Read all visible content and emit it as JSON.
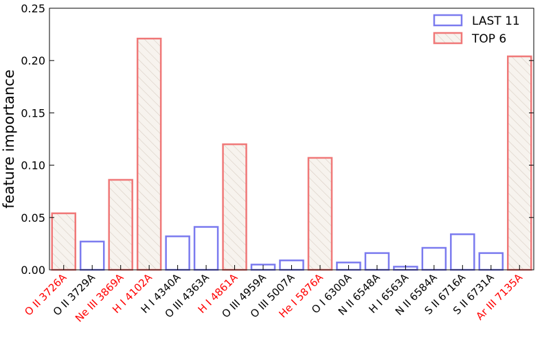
{
  "chart_data": {
    "type": "bar",
    "title": "",
    "xlabel": "",
    "ylabel": "feature importance",
    "ylim": [
      0,
      0.25
    ],
    "yticks": [
      "0.00",
      "0.05",
      "0.10",
      "0.15",
      "0.20",
      "0.25"
    ],
    "grid": false,
    "legend_position": "top-right",
    "series": [
      {
        "name": "LAST 11",
        "color": "#7b7bef",
        "fill": "none"
      },
      {
        "name": "TOP 6",
        "color": "#f07878",
        "fill": "hatched"
      }
    ],
    "categories": [
      {
        "label": "O II  3726A",
        "value": 0.054,
        "series": "TOP 6",
        "label_color": "#ff0000"
      },
      {
        "label": "O II  3729A",
        "value": 0.027,
        "series": "LAST 11",
        "label_color": "#000000"
      },
      {
        "label": "Ne III  3869A",
        "value": 0.086,
        "series": "TOP 6",
        "label_color": "#ff0000"
      },
      {
        "label": "H  I  4102A",
        "value": 0.221,
        "series": "TOP 6",
        "label_color": "#ff0000"
      },
      {
        "label": "H  I  4340A",
        "value": 0.032,
        "series": "LAST 11",
        "label_color": "#000000"
      },
      {
        "label": "O  III  4363A",
        "value": 0.041,
        "series": "LAST 11",
        "label_color": "#000000"
      },
      {
        "label": "H  I  4861A",
        "value": 0.12,
        "series": "TOP 6",
        "label_color": "#ff0000"
      },
      {
        "label": "O  III  4959A",
        "value": 0.005,
        "series": "LAST 11",
        "label_color": "#000000"
      },
      {
        "label": "O  III  5007A",
        "value": 0.009,
        "series": "LAST 11",
        "label_color": "#000000"
      },
      {
        "label": "He I  5876A",
        "value": 0.107,
        "series": "TOP 6",
        "label_color": "#ff0000"
      },
      {
        "label": "O  I  6300A",
        "value": 0.007,
        "series": "LAST 11",
        "label_color": "#000000"
      },
      {
        "label": "N  II  6548A",
        "value": 0.016,
        "series": "LAST 11",
        "label_color": "#000000"
      },
      {
        "label": "H  I  6563A",
        "value": 0.003,
        "series": "LAST 11",
        "label_color": "#000000"
      },
      {
        "label": "N  II  6584A",
        "value": 0.021,
        "series": "LAST 11",
        "label_color": "#000000"
      },
      {
        "label": "S II  6716A",
        "value": 0.034,
        "series": "LAST 11",
        "label_color": "#000000"
      },
      {
        "label": "S II  6731A",
        "value": 0.016,
        "series": "LAST 11",
        "label_color": "#000000"
      },
      {
        "label": "Ar III  7135A",
        "value": 0.204,
        "series": "TOP 6",
        "label_color": "#ff0000"
      }
    ]
  }
}
